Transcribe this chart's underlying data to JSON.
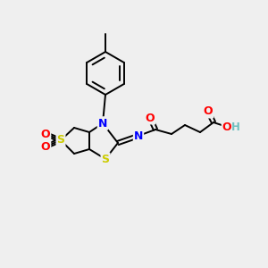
{
  "bg_color": "#efefef",
  "atom_colors": {
    "C": "#000000",
    "N": "#0000ff",
    "S": "#cccc00",
    "O": "#ff0000",
    "H": "#6fbfbf"
  },
  "bond_color": "#000000",
  "figsize": [
    3.0,
    3.0
  ],
  "dpi": 100
}
